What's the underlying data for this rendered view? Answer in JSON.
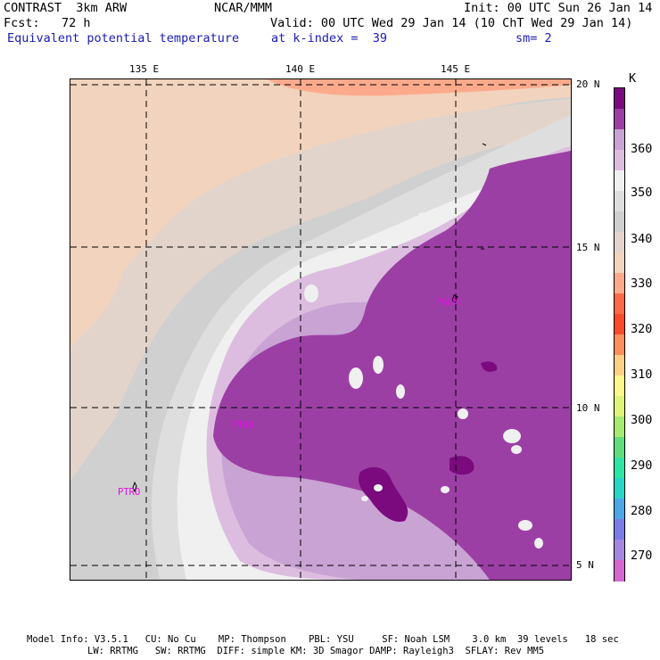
{
  "header": {
    "left_line1": "CONTRAST  3km ARW",
    "center_line1": "NCAR/MMM",
    "right_line1": "Init: 00 UTC Sun 26 Jan 14",
    "left_line2": "Fcst:   72 h",
    "right_line2": "Valid: 00 UTC Wed 29 Jan 14 (10 ChT Wed 29 Jan 14)",
    "field_name": "Equivalent potential temperature",
    "level": "at k-index =  39",
    "smoothing": "sm= 2"
  },
  "map": {
    "lon_labels": [
      "135 E",
      "140 E",
      "145 E"
    ],
    "lat_labels": [
      "20 N",
      "15 N",
      "10 N",
      "5 N"
    ],
    "station_labels": [
      "PTRO",
      "PTKK",
      "PGUM"
    ],
    "colors": {
      "c340": "#f2d3bd",
      "c345": "#e3d4cb",
      "c350": "#d0d0d0",
      "c355": "#dedede",
      "c360": "#f0f0f0",
      "c365": "#dcbde0",
      "c370": "#c9a3d3",
      "c375": "#9c3fa5",
      "c380": "#7a0a7e",
      "c335": "#fdaa8c",
      "station": "#e010e0"
    }
  },
  "colorbar": {
    "unit": "K",
    "tick_labels": [
      "360",
      "350",
      "340",
      "330",
      "320",
      "310",
      "300",
      "290",
      "280",
      "270"
    ],
    "segments": [
      "#7a0a7e",
      "#9c3fa5",
      "#c9a3d3",
      "#dcbde0",
      "#f0f0f0",
      "#dedede",
      "#d0d0d0",
      "#e3d4cb",
      "#f2d3bd",
      "#fdaa8c",
      "#fc6a48",
      "#fc4a2a",
      "#fd8f5f",
      "#fdd085",
      "#fef78a",
      "#def477",
      "#a6ea6f",
      "#5fde7e",
      "#2ee6a3",
      "#27d6c6",
      "#4ba7e6",
      "#7a7de8",
      "#a487e1",
      "#d666d2"
    ]
  },
  "footer": {
    "line1": "Model Info: V3.5.1   CU: No Cu    MP: Thompson    PBL: YSU     SF: Noah LSM    3.0 km  39 levels   18 sec",
    "line2": "LW: RRTMG   SW: RRTMG  DIFF: simple KM: 3D Smagor DAMP: Rayleigh3  SFLAY: Rev MM5"
  }
}
